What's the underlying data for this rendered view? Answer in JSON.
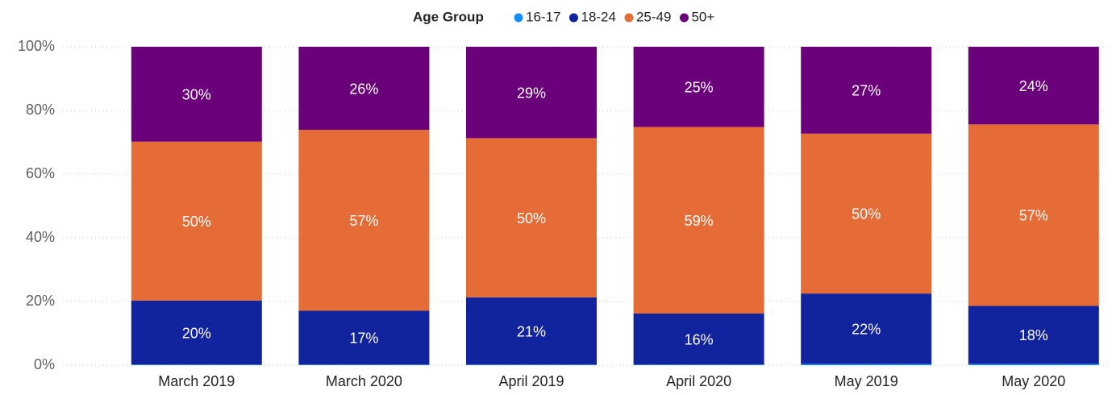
{
  "chart_data": {
    "type": "stacked_bar",
    "legend_title": "Age Group",
    "categories": [
      "March 2019",
      "March 2020",
      "April 2019",
      "April 2020",
      "May 2019",
      "May 2020"
    ],
    "series": [
      {
        "name": "16-17",
        "color": "#118dff",
        "values": [
          0.2,
          0.2,
          0.2,
          0.2,
          0.4,
          0.4
        ]
      },
      {
        "name": "18-24",
        "color": "#12239e",
        "values": [
          20.1,
          16.9,
          21.1,
          16.0,
          22.1,
          18.2
        ],
        "value_labels": [
          "20%",
          "17%",
          "21%",
          "16%",
          "22%",
          "18%"
        ]
      },
      {
        "name": "25-49",
        "color": "#e66c37",
        "values": [
          49.9,
          56.8,
          50.0,
          58.6,
          50.2,
          57.0
        ],
        "value_labels": [
          "50%",
          "57%",
          "50%",
          "59%",
          "50%",
          "57%"
        ]
      },
      {
        "name": "50+",
        "color": "#6b007b",
        "values": [
          29.8,
          26.1,
          28.7,
          25.2,
          27.3,
          24.4
        ],
        "value_labels": [
          "30%",
          "26%",
          "29%",
          "25%",
          "27%",
          "24%"
        ]
      }
    ],
    "ylim": [
      0,
      100
    ],
    "yticks": [
      {
        "value": 0,
        "label": "0%"
      },
      {
        "value": 20,
        "label": "20%"
      },
      {
        "value": 40,
        "label": "40%"
      },
      {
        "value": 60,
        "label": "60%"
      },
      {
        "value": 80,
        "label": "80%"
      },
      {
        "value": 100,
        "label": "100%"
      }
    ],
    "grid": true
  }
}
